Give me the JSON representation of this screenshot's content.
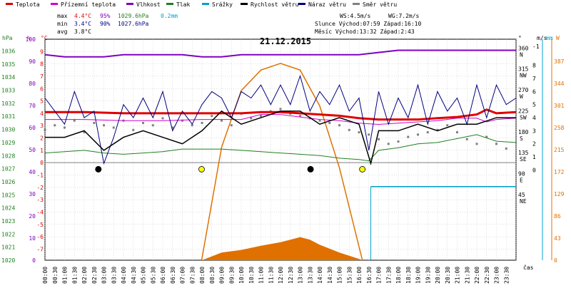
{
  "chart_data": {
    "type": "line",
    "title": "21.12.2015",
    "legend": [
      {
        "name": "Teplota",
        "color": "#e00000"
      },
      {
        "name": "Přízemní teplota",
        "color": "#d000d0"
      },
      {
        "name": "Vlhkost",
        "color": "#8000c0"
      },
      {
        "name": "Tlak",
        "color": "#208020"
      },
      {
        "name": "Srážky",
        "color": "#00a0d0"
      },
      {
        "name": "Rychlost větru",
        "color": "#000000"
      },
      {
        "name": "Náraz větru",
        "color": "#000080"
      },
      {
        "name": "Směr větru",
        "color": "#808080"
      }
    ],
    "stats": {
      "max": {
        "label": "max",
        "temp": "4.4°C",
        "hum": "95%",
        "press": "1029.6hPa",
        "rain": "0.2mm"
      },
      "min": {
        "label": "min",
        "temp": "3.4°C",
        "hum": "90%",
        "press": "1027.6hPa"
      },
      "avg": {
        "label": "avg",
        "temp": "3.8°C"
      }
    },
    "info": {
      "ws": "WS:4.5m/s",
      "wg": "WG:7.2m/s",
      "sun": "Slunce Východ:07:59  Západ:16:10",
      "moon": "Měsíc  Východ:13:32  Západ:2:43"
    },
    "axis_labels": {
      "hpa": "hPa",
      "pct": "%",
      "degc": "°C",
      "deg": "°",
      "ms": "m/s",
      "mm": "mm",
      "w": "W",
      "time": "čas"
    },
    "axes": {
      "hpa": [
        "1036",
        "1035",
        "1034",
        "1033",
        "1032",
        "1031",
        "1030",
        "1029",
        "1028",
        "1027",
        "1026",
        "1025",
        "1024",
        "1023",
        "1022",
        "1021",
        "1020"
      ],
      "humidity": [
        "100",
        "90",
        "80",
        "70",
        "60",
        "50",
        "40",
        "30",
        "20",
        "10",
        "0"
      ],
      "temperature": [
        "9",
        "8",
        "7",
        "6",
        "5",
        "4",
        "3",
        "2",
        "1",
        "0",
        "-1",
        "-2",
        "-3",
        "-4",
        "-5",
        "-6",
        "-7"
      ],
      "direction": [
        {
          "deg": "360",
          "dir": "N"
        },
        {
          "deg": "315",
          "dir": "NW"
        },
        {
          "deg": "270",
          "dir": "W"
        },
        {
          "deg": "225",
          "dir": "SW"
        },
        {
          "deg": "180",
          "dir": "S"
        },
        {
          "deg": "135",
          "dir": "SE"
        },
        {
          "deg": "90",
          "dir": "E"
        },
        {
          "deg": "45",
          "dir": "NE"
        }
      ],
      "wind": [
        "-1",
        "8",
        "7",
        "6",
        "5",
        "4",
        "3",
        "2",
        "1",
        "0"
      ],
      "solar": [
        "387",
        "344",
        "301",
        "258",
        "215",
        "172",
        "129",
        "86",
        "43",
        "0"
      ],
      "time": [
        "00:00",
        "00:30",
        "01:00",
        "01:30",
        "02:00",
        "02:30",
        "03:00",
        "03:30",
        "04:00",
        "04:30",
        "05:00",
        "05:30",
        "06:00",
        "06:30",
        "07:00",
        "07:30",
        "08:00",
        "08:30",
        "09:00",
        "09:30",
        "10:00",
        "10:30",
        "11:00",
        "11:30",
        "12:00",
        "12:30",
        "13:00",
        "13:30",
        "14:00",
        "14:30",
        "15:00",
        "15:30",
        "16:00",
        "16:30",
        "17:00",
        "17:30",
        "18:00",
        "18:30",
        "19:00",
        "19:30",
        "20:00",
        "20:30",
        "21:00",
        "21:30",
        "22:00",
        "22:30",
        "23:00",
        "23:30"
      ]
    },
    "series": {
      "temperature": {
        "hours": [
          0,
          2,
          4,
          6,
          8,
          10,
          11,
          12,
          13,
          14,
          15,
          16,
          17,
          18,
          19,
          20,
          21,
          22,
          22.5,
          23,
          24
        ],
        "values": [
          4.1,
          4.1,
          4.0,
          4.0,
          4.0,
          4.0,
          4.1,
          4.1,
          4.0,
          3.9,
          3.8,
          3.6,
          3.5,
          3.5,
          3.5,
          3.6,
          3.7,
          3.9,
          4.3,
          4.0,
          4.1
        ]
      },
      "ground_temperature": {
        "hours": [
          0,
          2,
          4,
          6,
          8,
          10,
          11,
          12,
          13,
          14,
          15,
          16,
          17,
          18,
          19,
          20,
          21,
          22,
          22.5,
          23,
          24
        ],
        "values": [
          3.5,
          3.5,
          3.4,
          3.4,
          3.5,
          3.5,
          3.9,
          3.9,
          3.7,
          3.5,
          3.4,
          3.2,
          3.1,
          3.2,
          3.3,
          3.4,
          3.6,
          3.6,
          3.3,
          3.5,
          3.6
        ]
      },
      "humidity": {
        "hours": [
          0,
          1,
          2,
          3,
          4,
          5,
          6,
          7,
          8,
          9,
          10,
          11,
          12,
          13,
          14,
          15,
          16,
          17,
          18,
          19,
          20,
          21,
          22,
          23,
          24
        ],
        "values": [
          93,
          92,
          92,
          92,
          93,
          93,
          93,
          93,
          92,
          92,
          93,
          93,
          93,
          93,
          93,
          93,
          93,
          94,
          95,
          95,
          95,
          95,
          95,
          95,
          95
        ]
      },
      "pressure": {
        "hours": [
          0,
          1,
          2,
          3,
          4,
          5,
          6,
          7,
          8,
          9,
          10,
          11,
          12,
          13,
          14,
          15,
          16,
          16.5,
          17,
          18,
          19,
          20,
          21,
          22,
          23,
          24
        ],
        "values": [
          1028.2,
          1028.3,
          1028.4,
          1028.2,
          1028.1,
          1028.2,
          1028.3,
          1028.5,
          1028.5,
          1028.5,
          1028.4,
          1028.3,
          1028.2,
          1028.1,
          1028.0,
          1027.8,
          1027.7,
          1027.6,
          1028.4,
          1028.6,
          1028.9,
          1029.0,
          1029.3,
          1029.6,
          1029.1,
          1029.0
        ]
      },
      "rain_bars": {
        "hours": [
          16.6,
          24
        ],
        "values": [
          0.2,
          0.2
        ]
      },
      "wind_speed": {
        "hours": [
          0,
          1,
          2,
          3,
          4,
          5,
          6,
          7,
          8,
          9,
          10,
          11,
          12,
          13,
          14,
          15,
          16,
          16.6,
          17,
          18,
          19,
          20,
          21,
          22,
          23,
          24
        ],
        "values": [
          2.5,
          2.5,
          3.0,
          1.5,
          2.5,
          3.0,
          2.5,
          2.0,
          3.0,
          4.5,
          3.5,
          4.0,
          4.5,
          4.5,
          3.5,
          4.0,
          3.5,
          0.5,
          3.0,
          3.0,
          3.5,
          3.0,
          3.5,
          3.5,
          4.0,
          4.0
        ]
      },
      "wind_gust": {
        "hours": [
          0,
          0.5,
          1,
          1.5,
          2,
          2.5,
          3,
          3.5,
          4,
          4.5,
          5,
          5.5,
          6,
          6.5,
          7,
          7.5,
          8,
          8.5,
          9,
          9.5,
          10,
          10.5,
          11,
          11.5,
          12,
          12.5,
          13,
          13.5,
          14,
          14.5,
          15,
          15.5,
          16,
          16.5,
          17,
          17.5,
          18,
          18.5,
          19,
          19.5,
          20,
          20.5,
          21,
          21.5,
          22,
          22.5,
          23,
          23.5,
          24
        ],
        "values": [
          5.5,
          4.5,
          3.5,
          6.0,
          4.0,
          4.5,
          0.5,
          2.5,
          5.0,
          4.0,
          5.5,
          4.0,
          6.0,
          3.0,
          4.5,
          3.5,
          5.0,
          6.0,
          5.5,
          4.0,
          6.0,
          5.5,
          6.5,
          5.0,
          6.5,
          5.0,
          7.2,
          4.5,
          6.0,
          5.0,
          6.5,
          4.5,
          5.5,
          1.5,
          6.0,
          3.5,
          5.5,
          4.0,
          6.5,
          3.5,
          6.0,
          4.5,
          5.5,
          3.5,
          6.5,
          4.0,
          6.5,
          5.0,
          5.5
        ]
      },
      "wind_direction_samples": {
        "hours": [
          0,
          0.5,
          1,
          1.5,
          2,
          2.5,
          3,
          3.5,
          4,
          4.5,
          5,
          5.5,
          6,
          6.5,
          7,
          7.5,
          8,
          8.5,
          9,
          9.5,
          10,
          10.5,
          11,
          11.5,
          12,
          12.5,
          13,
          13.5,
          14,
          14.5,
          15,
          15.5,
          16,
          16.5,
          17,
          17.5,
          18,
          18.5,
          19,
          19.5,
          20,
          20.5,
          21,
          21.5,
          22,
          22.5,
          23,
          23.5
        ],
        "values": [
          190,
          200,
          195,
          210,
          185,
          205,
          200,
          195,
          210,
          190,
          205,
          200,
          215,
          195,
          210,
          200,
          205,
          220,
          210,
          200,
          225,
          215,
          220,
          230,
          235,
          225,
          220,
          215,
          210,
          205,
          200,
          190,
          185,
          180,
          170,
          160,
          165,
          175,
          180,
          185,
          190,
          200,
          185,
          170,
          160,
          175,
          160,
          150
        ]
      },
      "solar_curve": {
        "hours": [
          7.98,
          9,
          10,
          11,
          12,
          13,
          14,
          15,
          16.17
        ],
        "values": [
          0,
          220,
          330,
          370,
          383,
          370,
          300,
          180,
          0
        ]
      },
      "solar_area": {
        "hours": [
          8,
          9,
          10,
          11,
          12,
          12.5,
          13,
          13.5,
          14,
          15,
          16.2
        ],
        "values": [
          0,
          15,
          20,
          28,
          35,
          40,
          45,
          40,
          30,
          15,
          0
        ]
      },
      "markers": {
        "sunrise": {
          "hour": 7.98,
          "value": 0
        },
        "sunset": {
          "hour": 16.17,
          "value": 0
        },
        "moonrise": {
          "hour": 13.53,
          "value": 0
        },
        "moonset": {
          "hour": 2.72,
          "value": 0
        }
      }
    },
    "reference_lines": {
      "temp_zero": 0,
      "wind_zero": 0
    }
  }
}
